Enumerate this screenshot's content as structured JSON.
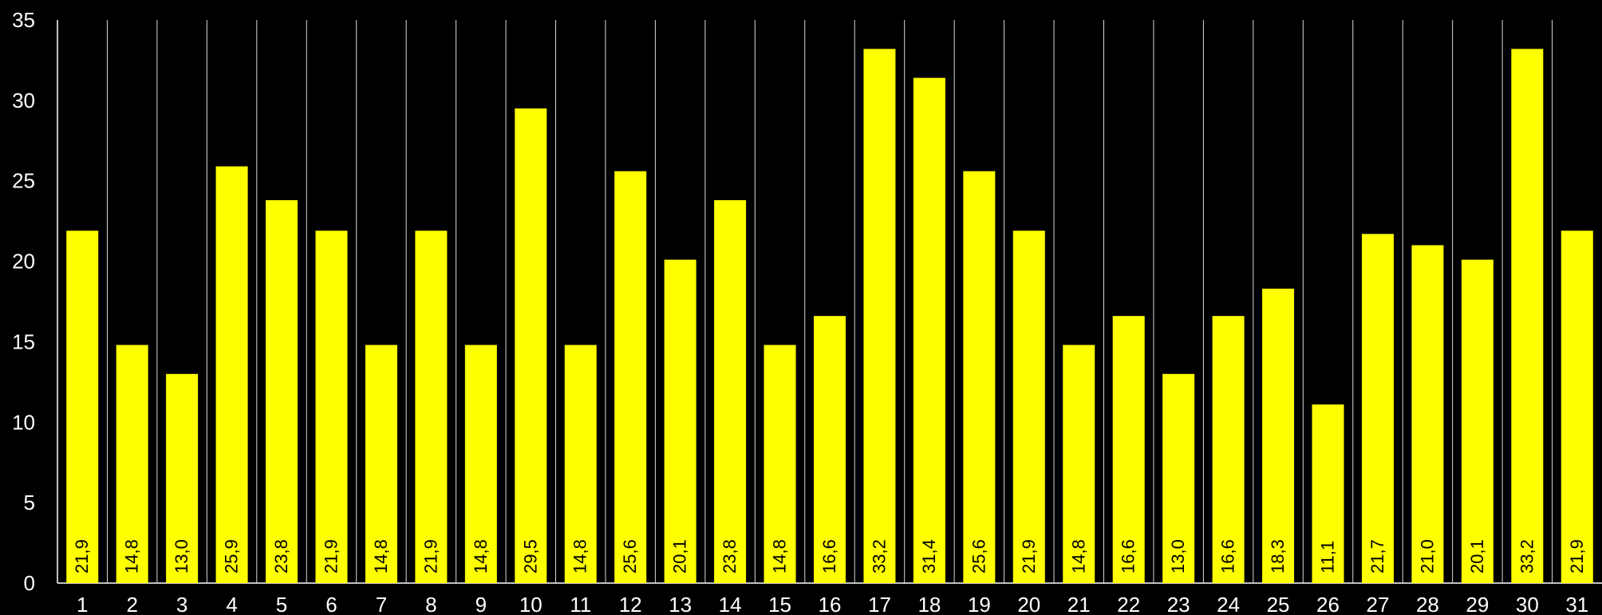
{
  "chart_data": {
    "type": "bar",
    "categories": [
      "1",
      "2",
      "3",
      "4",
      "5",
      "6",
      "7",
      "8",
      "9",
      "10",
      "11",
      "12",
      "13",
      "14",
      "15",
      "16",
      "17",
      "18",
      "19",
      "20",
      "21",
      "22",
      "23",
      "24",
      "25",
      "26",
      "27",
      "28",
      "29",
      "30",
      "31"
    ],
    "values": [
      21.9,
      14.8,
      13.0,
      25.9,
      23.8,
      21.9,
      14.8,
      21.9,
      14.8,
      29.5,
      14.8,
      25.6,
      20.1,
      23.8,
      14.8,
      16.6,
      33.2,
      31.4,
      25.6,
      21.9,
      14.8,
      16.6,
      13.0,
      16.6,
      18.3,
      11.1,
      21.7,
      21.0,
      20.1,
      33.2,
      21.9
    ],
    "data_labels": [
      "21,9",
      "14,8",
      "13,0",
      "25,9",
      "23,8",
      "21,9",
      "14,8",
      "21,9",
      "14,8",
      "29,5",
      "14,8",
      "25,6",
      "20,1",
      "23,8",
      "14,8",
      "16,6",
      "33,2",
      "31,4",
      "25,6",
      "21,9",
      "14,8",
      "16,6",
      "13,0",
      "16,6",
      "18,3",
      "11,1",
      "21,7",
      "21,0",
      "20,1",
      "33,2",
      "21,9"
    ],
    "y_ticks": [
      "0",
      "5",
      "10",
      "15",
      "20",
      "25",
      "30",
      "35"
    ],
    "ylim": [
      0,
      35
    ],
    "title": "",
    "xlabel": "",
    "ylabel": "",
    "grid": "vertical",
    "legend": "none",
    "colors": {
      "background": "#000000",
      "bar": "#ffff00",
      "grid": "#ffffff",
      "tick_text": "#ffffff",
      "data_label_text": "#000000"
    }
  }
}
